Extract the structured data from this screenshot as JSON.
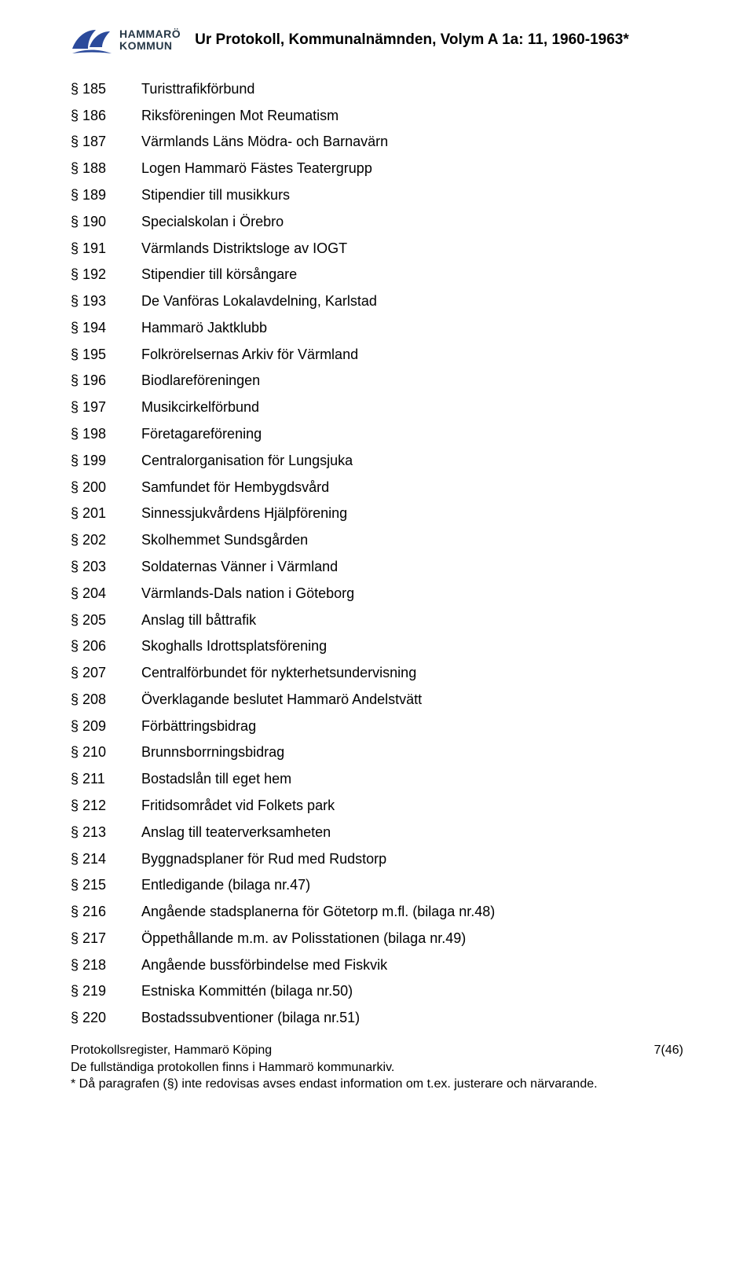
{
  "logo": {
    "line1": "HAMMARÖ",
    "line2": "KOMMUN",
    "swash_color": "#2b4a9b",
    "text_color": "#263746"
  },
  "doc_title": "Ur Protokoll, Kommunalnämnden, Volym A 1a: 11, 1960-1963*",
  "entries": [
    {
      "sec": "§ 185",
      "txt": "Turisttrafikförbund"
    },
    {
      "sec": "§ 186",
      "txt": "Riksföreningen Mot Reumatism"
    },
    {
      "sec": "§ 187",
      "txt": "Värmlands Läns Mödra- och Barnavärn"
    },
    {
      "sec": "§ 188",
      "txt": "Logen Hammarö Fästes Teatergrupp"
    },
    {
      "sec": "§ 189",
      "txt": "Stipendier till musikkurs"
    },
    {
      "sec": "§ 190",
      "txt": "Specialskolan i Örebro"
    },
    {
      "sec": "§ 191",
      "txt": "Värmlands Distriktsloge av IOGT"
    },
    {
      "sec": "§ 192",
      "txt": "Stipendier till körsångare"
    },
    {
      "sec": "§ 193",
      "txt": "De Vanföras Lokalavdelning, Karlstad"
    },
    {
      "sec": "§ 194",
      "txt": "Hammarö Jaktklubb"
    },
    {
      "sec": "§ 195",
      "txt": "Folkrörelsernas Arkiv för Värmland"
    },
    {
      "sec": "§ 196",
      "txt": "Biodlareföreningen"
    },
    {
      "sec": "§ 197",
      "txt": "Musikcirkelförbund"
    },
    {
      "sec": "§ 198",
      "txt": "Företagareförening"
    },
    {
      "sec": "§ 199",
      "txt": "Centralorganisation för Lungsjuka"
    },
    {
      "sec": "§ 200",
      "txt": "Samfundet för Hembygdsvård"
    },
    {
      "sec": "§ 201",
      "txt": "Sinnessjukvårdens Hjälpförening"
    },
    {
      "sec": "§ 202",
      "txt": "Skolhemmet Sundsgården"
    },
    {
      "sec": "§ 203",
      "txt": "Soldaternas Vänner i Värmland"
    },
    {
      "sec": "§ 204",
      "txt": "Värmlands-Dals nation i Göteborg"
    },
    {
      "sec": "§ 205",
      "txt": "Anslag till båttrafik"
    },
    {
      "sec": "§ 206",
      "txt": "Skoghalls Idrottsplatsförening"
    },
    {
      "sec": "§ 207",
      "txt": "Centralförbundet för nykterhetsundervisning"
    },
    {
      "sec": "§ 208",
      "txt": "Överklagande beslutet Hammarö Andelstvätt"
    },
    {
      "sec": "§ 209",
      "txt": "Förbättringsbidrag"
    },
    {
      "sec": "§ 210",
      "txt": "Brunnsborrningsbidrag"
    },
    {
      "sec": "§ 211",
      "txt": "Bostadslån till eget hem"
    },
    {
      "sec": "§ 212",
      "txt": "Fritidsområdet vid Folkets park"
    },
    {
      "sec": "§ 213",
      "txt": "Anslag till teaterverksamheten"
    },
    {
      "sec": "§ 214",
      "txt": "Byggnadsplaner för Rud med Rudstorp"
    },
    {
      "sec": "§ 215",
      "txt": "Entledigande (bilaga nr.47)"
    },
    {
      "sec": "§ 216",
      "txt": "Angående stadsplanerna för Götetorp m.fl. (bilaga nr.48)"
    },
    {
      "sec": "§ 217",
      "txt": "Öppethållande m.m. av Polisstationen (bilaga nr.49)"
    },
    {
      "sec": "§ 218",
      "txt": "Angående bussförbindelse med Fiskvik"
    },
    {
      "sec": "§ 219",
      "txt": "Estniska Kommittén (bilaga nr.50)"
    },
    {
      "sec": "§ 220",
      "txt": "Bostadssubventioner (bilaga nr.51)"
    }
  ],
  "footer": {
    "left": "Protokollsregister, Hammarö Köping",
    "right": "7(46)",
    "archive_line": "De fullständiga protokollen finns i Hammarö kommunarkiv.",
    "note_line": "* Då paragrafen (§) inte redovisas avses endast information om t.ex. justerare och närvarande."
  }
}
